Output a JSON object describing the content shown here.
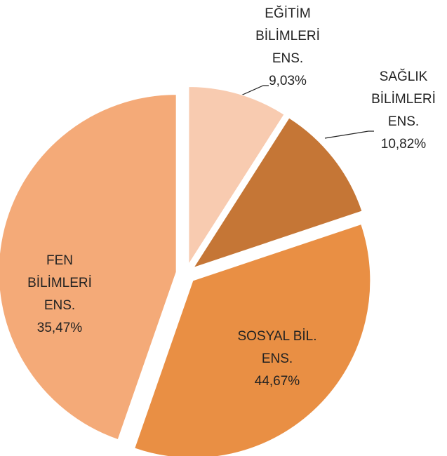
{
  "chart_data": {
    "type": "pie",
    "categories": [
      "EĞİTİM BİLİMLERİ ENS.",
      "SAĞLIK BİLİMLERİ ENS.",
      "FEN BİLİMLERİ ENS.",
      "SOSYAL BİL. ENS."
    ],
    "values": [
      9.03,
      10.82,
      35.47,
      44.67
    ],
    "value_labels": [
      "9,03%",
      "10,82%",
      "35,47%",
      "44,67%"
    ],
    "colors": [
      "#f8cbb0",
      "#c57636",
      "#e98f44",
      "#f4aa78"
    ]
  }
}
